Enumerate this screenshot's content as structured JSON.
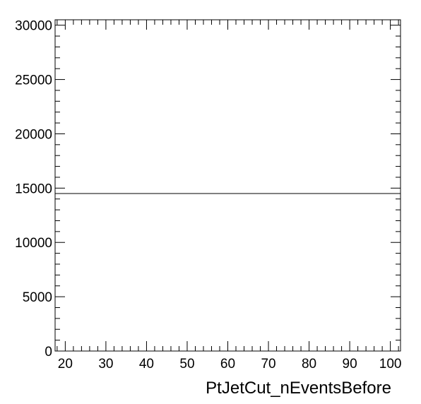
{
  "chart_data": {
    "type": "line",
    "title": "",
    "xlabel": "PtJetCut_nEventsBefore",
    "ylabel": "",
    "xlim": [
      17.5,
      102.5
    ],
    "ylim": [
      0,
      30500
    ],
    "x_ticks": [
      20,
      30,
      40,
      50,
      60,
      70,
      80,
      90,
      100
    ],
    "x_tick_labels": [
      "20",
      "30",
      "40",
      "50",
      "60",
      "70",
      "80",
      "90",
      "100"
    ],
    "y_ticks": [
      0,
      5000,
      10000,
      15000,
      20000,
      25000,
      30000
    ],
    "y_tick_labels": [
      "0",
      "5000",
      "10000",
      "15000",
      "20000",
      "25000",
      "30000"
    ],
    "grid": false,
    "legend": "none",
    "series": [
      {
        "x": [
          17.5,
          102.5
        ],
        "y": [
          14500,
          14500
        ]
      }
    ],
    "colors": {
      "line": "#000000",
      "frame": "#000000",
      "background": "#ffffff"
    }
  }
}
